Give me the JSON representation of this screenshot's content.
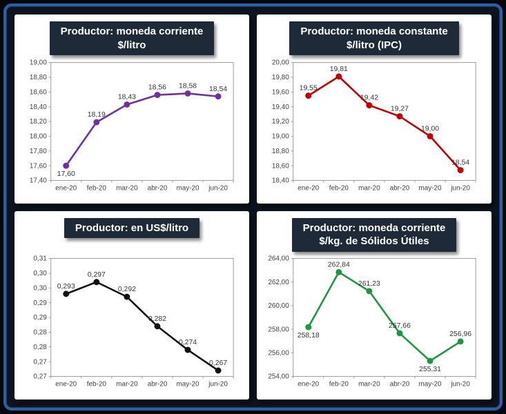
{
  "frame": {
    "outer_bg": "#04070c",
    "border_color": "#2d5fa8",
    "inner_bg": "#0d1420",
    "panel_bg": "#ffffff",
    "title_bg": "#1f2a39",
    "title_color": "#ffffff"
  },
  "chart_data": [
    {
      "type": "line",
      "title": "Productor: moneda corriente\n$/litro",
      "color": "#7030a0",
      "categories": [
        "ene-20",
        "feb-20",
        "mar-20",
        "abr-20",
        "may-20",
        "jun-20"
      ],
      "values": [
        17.6,
        18.19,
        18.43,
        18.56,
        18.58,
        18.54
      ],
      "labels": [
        "17,60",
        "18,19",
        "18,43",
        "18,56",
        "18,58",
        "18,54"
      ],
      "label_pos": [
        "below",
        "above",
        "above",
        "above",
        "above",
        "above"
      ],
      "ylim": [
        17.4,
        19.0
      ],
      "yticks": [
        17.4,
        17.6,
        17.8,
        18.0,
        18.2,
        18.4,
        18.6,
        18.8,
        19.0
      ],
      "ytick_labels": [
        "17,40",
        "17,60",
        "17,80",
        "18,00",
        "18,20",
        "18,40",
        "18,60",
        "18,80",
        "19,00"
      ],
      "grid": false,
      "legend": false
    },
    {
      "type": "line",
      "title": "Productor: moneda constante\n$/litro (IPC)",
      "color": "#c00000",
      "categories": [
        "ene-20",
        "feb-20",
        "mar-20",
        "abr-20",
        "may-20",
        "jun-20"
      ],
      "values": [
        19.55,
        19.81,
        19.42,
        19.27,
        19.0,
        18.54
      ],
      "labels": [
        "19,55",
        "19,81",
        "19,42",
        "19,27",
        "19,00",
        "18,54"
      ],
      "label_pos": [
        "above",
        "above",
        "above",
        "above",
        "above",
        "above"
      ],
      "ylim": [
        18.4,
        20.0
      ],
      "yticks": [
        18.4,
        18.6,
        18.8,
        19.0,
        19.2,
        19.4,
        19.6,
        19.8,
        20.0
      ],
      "ytick_labels": [
        "18,40",
        "18,60",
        "18,80",
        "19,00",
        "19,20",
        "19,40",
        "19,60",
        "19,80",
        "20,00"
      ],
      "grid": false,
      "legend": false
    },
    {
      "type": "line",
      "title": "Productor: en US$/litro",
      "color": "#111111",
      "categories": [
        "ene-20",
        "feb-20",
        "mar-20",
        "abr-20",
        "may-20",
        "jun-20"
      ],
      "values": [
        0.293,
        0.297,
        0.292,
        0.282,
        0.274,
        0.267
      ],
      "labels": [
        "0,293",
        "0,297",
        "0,292",
        "0,282",
        "0,274",
        "0,267"
      ],
      "label_pos": [
        "above",
        "above",
        "above",
        "above",
        "above",
        "above"
      ],
      "ylim": [
        0.265,
        0.305
      ],
      "yticks": [
        0.265,
        0.27,
        0.275,
        0.28,
        0.285,
        0.29,
        0.295,
        0.3,
        0.305
      ],
      "ytick_labels": [
        "0,27",
        "0,27",
        "0,28",
        "0,28",
        "0,29",
        "0,29",
        "0,30",
        "0,30",
        "0,31"
      ],
      "grid": false,
      "legend": false
    },
    {
      "type": "line",
      "title": "Productor: moneda corriente\n$/kg. de Sólidos Útiles",
      "color": "#1e9642",
      "categories": [
        "ene-20",
        "feb-20",
        "mar-20",
        "abr-20",
        "may-20",
        "jun-20"
      ],
      "values": [
        258.18,
        262.84,
        261.23,
        257.66,
        255.31,
        256.96
      ],
      "labels": [
        "258,18",
        "262,84",
        "261,23",
        "257,66",
        "255,31",
        "256,96"
      ],
      "label_pos": [
        "below",
        "above",
        "above",
        "above",
        "below",
        "above"
      ],
      "ylim": [
        254,
        264
      ],
      "yticks": [
        254,
        256,
        258,
        260,
        262,
        264
      ],
      "ytick_labels": [
        "254,00",
        "256,00",
        "258,00",
        "260,00",
        "262,00",
        "264,00"
      ],
      "grid": false,
      "legend": false
    }
  ]
}
